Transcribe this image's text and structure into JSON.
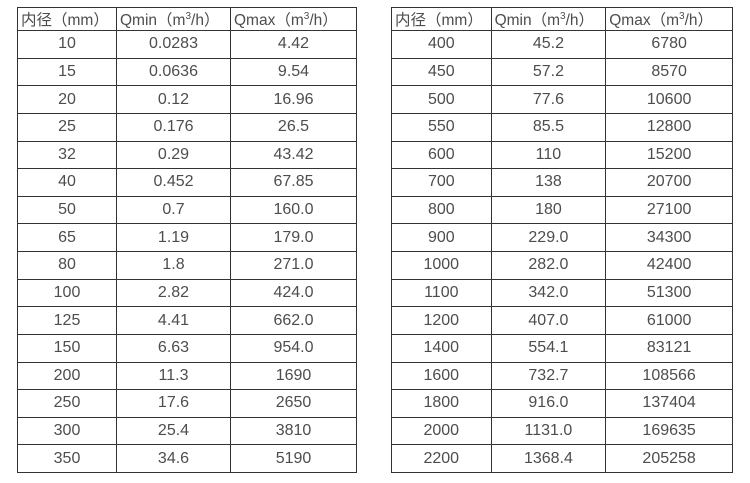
{
  "page": {
    "background": "#ffffff",
    "text_color": "#4d4d4d",
    "border_color": "#333333"
  },
  "chart_data": [
    {
      "type": "table",
      "title": "",
      "columns": [
        "内径（mm）",
        "Qmin（m³/h）",
        "Qmax（m³/h）"
      ],
      "header_parts": {
        "col1": "内径（mm）",
        "qmin_pre": "Qmin（m",
        "qmax_pre": "Qmax（m",
        "sup": "3",
        "unit_post": "/h）"
      },
      "rows": [
        [
          "10",
          "0.0283",
          "4.42"
        ],
        [
          "15",
          "0.0636",
          "9.54"
        ],
        [
          "20",
          "0.12",
          "16.96"
        ],
        [
          "25",
          "0.176",
          "26.5"
        ],
        [
          "32",
          "0.29",
          "43.42"
        ],
        [
          "40",
          "0.452",
          "67.85"
        ],
        [
          "50",
          "0.7",
          "160.0"
        ],
        [
          "65",
          "1.19",
          "179.0"
        ],
        [
          "80",
          "1.8",
          "271.0"
        ],
        [
          "100",
          "2.82",
          "424.0"
        ],
        [
          "125",
          "4.41",
          "662.0"
        ],
        [
          "150",
          "6.63",
          "954.0"
        ],
        [
          "200",
          "11.3",
          "1690"
        ],
        [
          "250",
          "17.6",
          "2650"
        ],
        [
          "300",
          "25.4",
          "3810"
        ],
        [
          "350",
          "34.6",
          "5190"
        ]
      ]
    },
    {
      "type": "table",
      "title": "",
      "columns": [
        "内径（mm）",
        "Qmin（m³/h）",
        "Qmax（m³/h）"
      ],
      "header_parts": {
        "col1": "内径（mm）",
        "qmin_pre": "Qmin（m",
        "qmax_pre": "Qmax（m",
        "sup": "3",
        "unit_post": "/h）"
      },
      "rows": [
        [
          "400",
          "45.2",
          "6780"
        ],
        [
          "450",
          "57.2",
          "8570"
        ],
        [
          "500",
          "77.6",
          "10600"
        ],
        [
          "550",
          "85.5",
          "12800"
        ],
        [
          "600",
          "110",
          "15200"
        ],
        [
          "700",
          "138",
          "20700"
        ],
        [
          "800",
          "180",
          "27100"
        ],
        [
          "900",
          "229.0",
          "34300"
        ],
        [
          "1000",
          "282.0",
          "42400"
        ],
        [
          "1100",
          "342.0",
          "51300"
        ],
        [
          "1200",
          "407.0",
          "61000"
        ],
        [
          "1400",
          "554.1",
          "83121"
        ],
        [
          "1600",
          "732.7",
          "108566"
        ],
        [
          "1800",
          "916.0",
          "137404"
        ],
        [
          "2000",
          "1131.0",
          "169635"
        ],
        [
          "2200",
          "1368.4",
          "205258"
        ]
      ]
    }
  ]
}
